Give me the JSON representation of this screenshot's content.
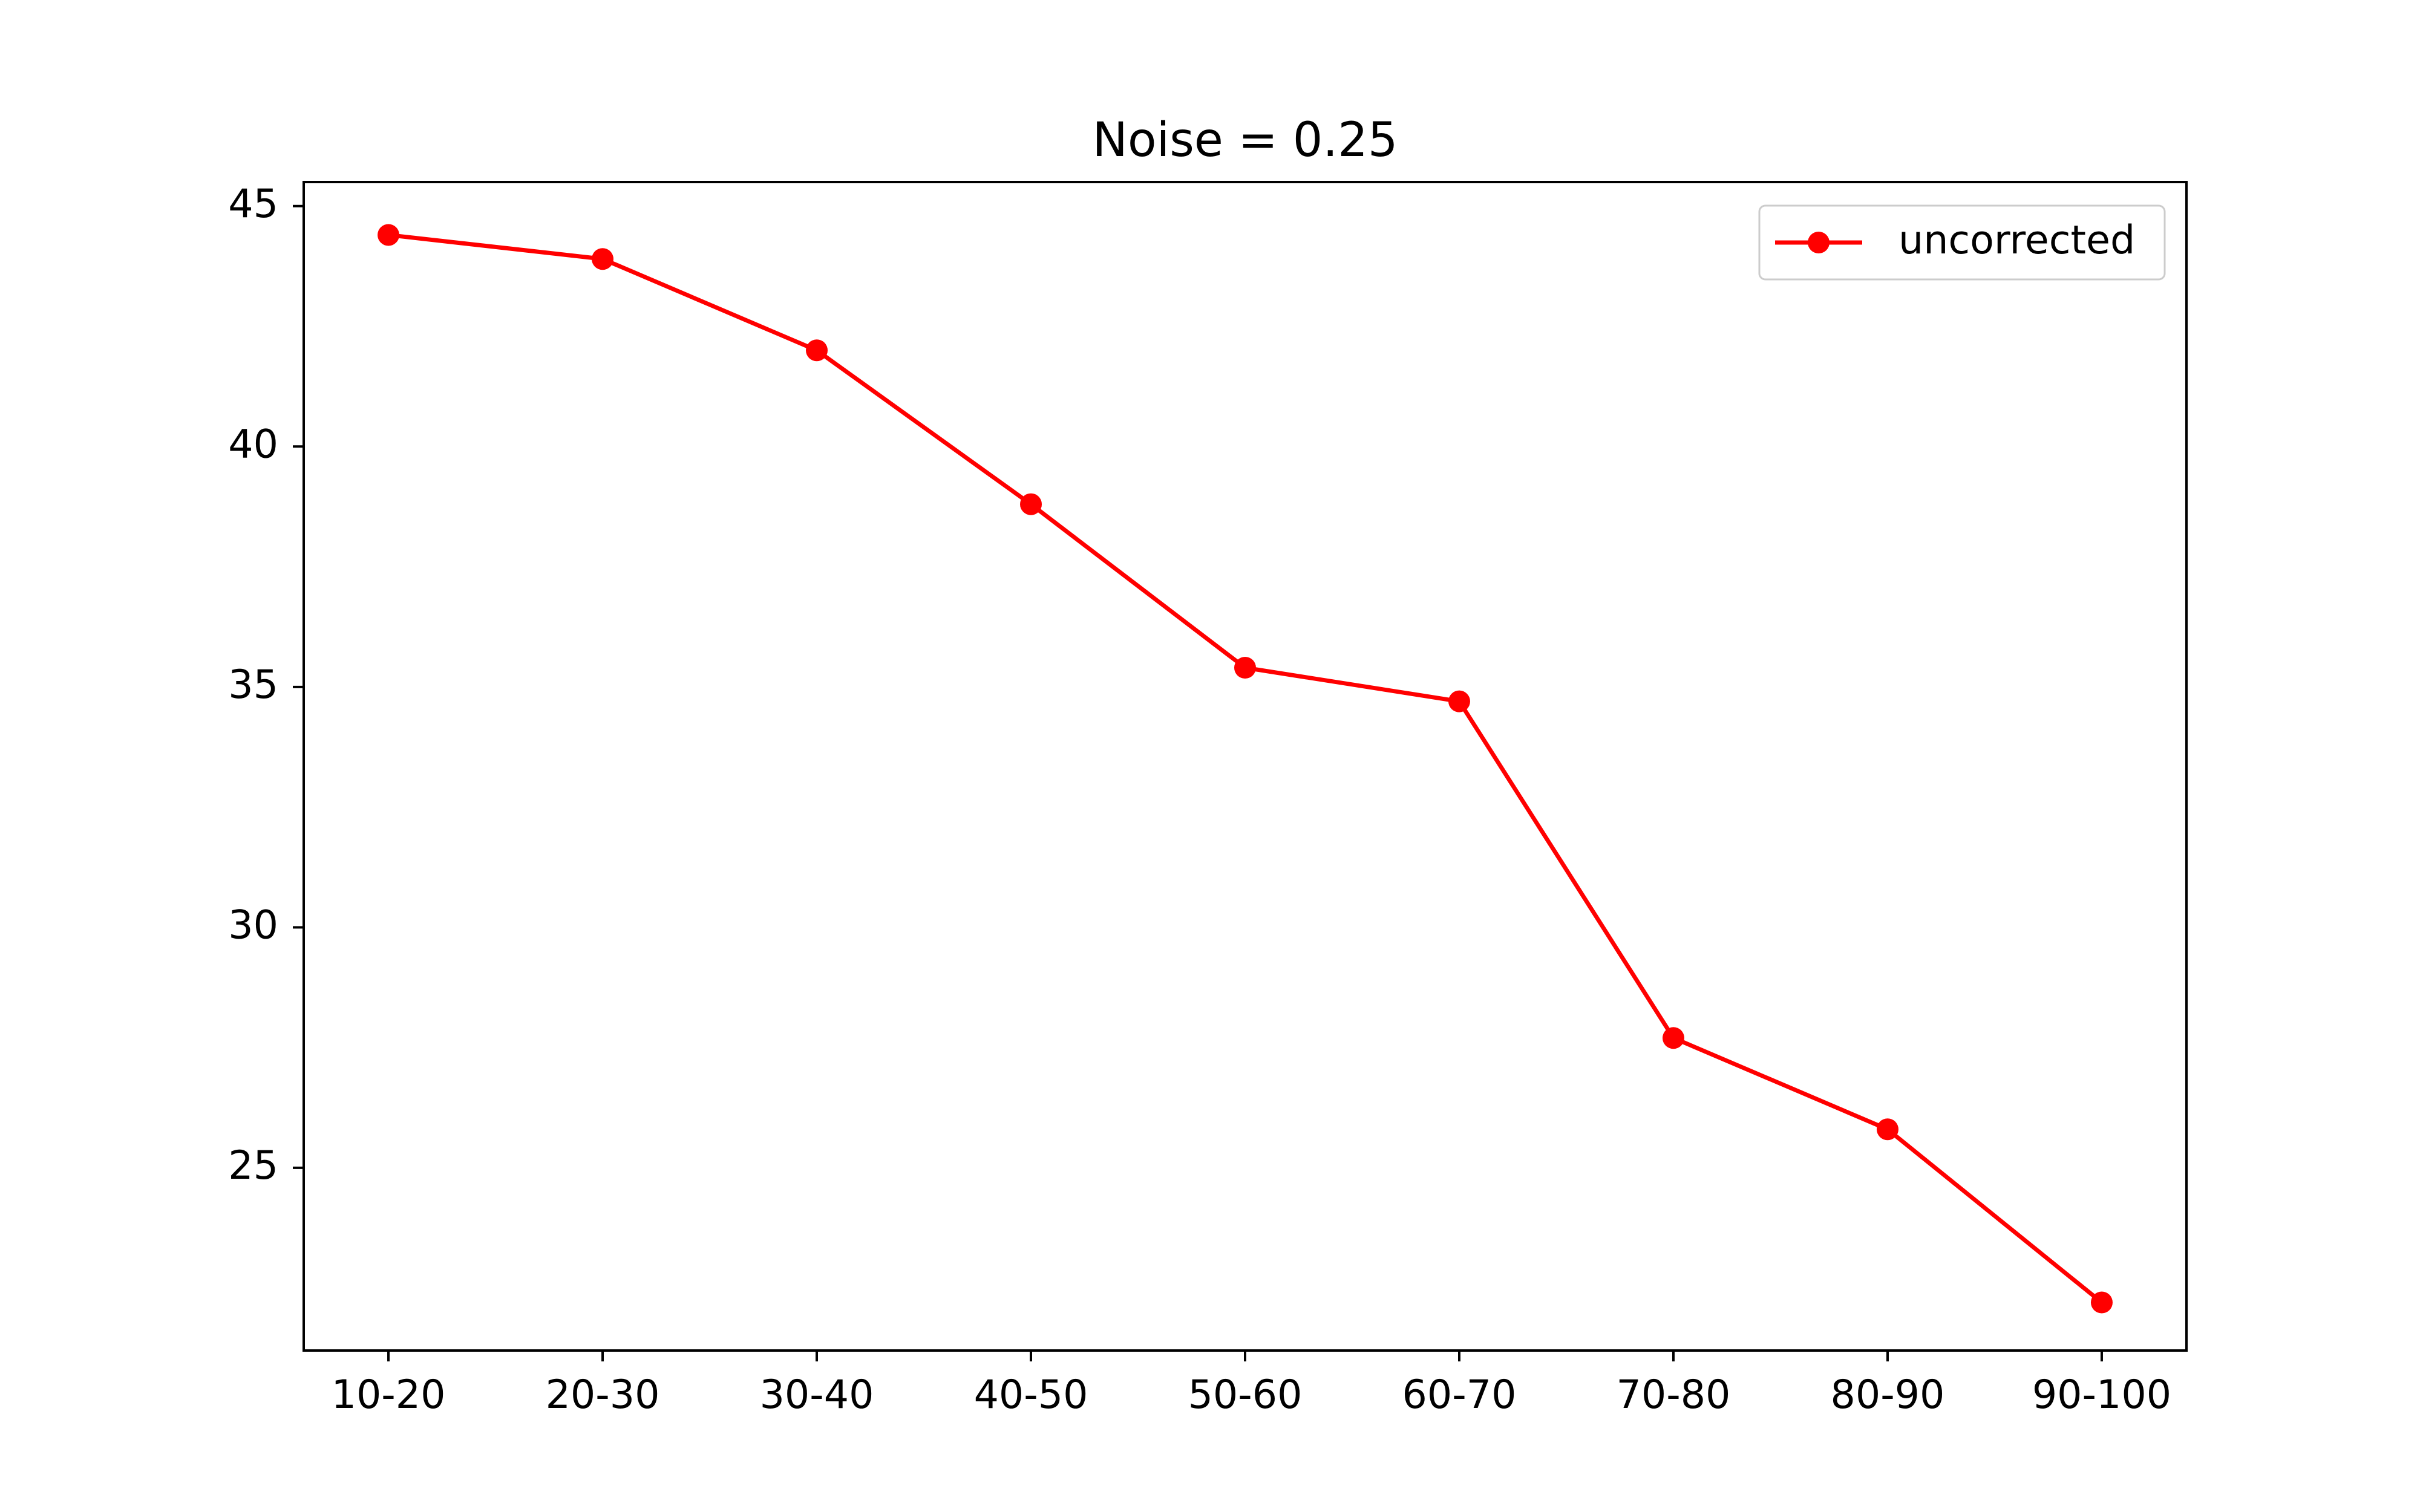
{
  "chart_data": {
    "type": "line",
    "title": "Noise = 0.25",
    "xlabel": "",
    "ylabel": "",
    "categories": [
      "10-20",
      "20-30",
      "30-40",
      "40-50",
      "50-60",
      "60-70",
      "70-80",
      "80-90",
      "90-100"
    ],
    "series": [
      {
        "name": "uncorrected",
        "color": "#ff0000",
        "marker": "circle",
        "values": [
          44.4,
          43.9,
          42.0,
          38.8,
          35.4,
          34.7,
          27.7,
          25.8,
          22.2
        ]
      }
    ],
    "ylim": [
      21.2,
      45.5
    ],
    "yticks": [
      25,
      30,
      35,
      40,
      45
    ],
    "grid": false,
    "legend_position": "top-right"
  }
}
